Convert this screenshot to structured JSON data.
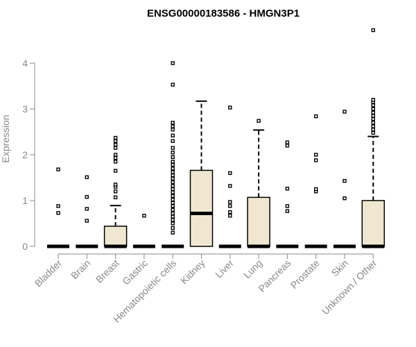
{
  "chart_data": {
    "type": "boxplot",
    "title": "ENSG00000183586 - HMGN3P1",
    "ylabel": "Expression",
    "xlabel": "",
    "ylim": [
      0,
      4.8
    ],
    "yticks": [
      0,
      1,
      2,
      3,
      4
    ],
    "grid": false,
    "box_fill": "#efe7cf",
    "categories": [
      "Bladder",
      "Brain",
      "Breast",
      "Gastric",
      "Hematopoietic cells",
      "Kidney",
      "Liver",
      "Lung",
      "Pancreas",
      "Prostate",
      "Skin",
      "Unknown / Other"
    ],
    "boxes": [
      {
        "category": "Bladder",
        "q1": 0,
        "median": 0,
        "q3": 0,
        "whisker_low": 0,
        "whisker_high": 0,
        "outliers": [
          0.73,
          0.88,
          1.68
        ]
      },
      {
        "category": "Brain",
        "q1": 0,
        "median": 0,
        "q3": 0,
        "whisker_low": 0,
        "whisker_high": 0,
        "outliers": [
          0.56,
          0.82,
          1.08,
          1.51
        ]
      },
      {
        "category": "Breast",
        "q1": 0,
        "median": 0,
        "q3": 0.44,
        "whisker_low": 0,
        "whisker_high": 0.89,
        "outliers": [
          1.07,
          1.2,
          1.3,
          1.35,
          1.65,
          1.85,
          1.93,
          2.0,
          2.15,
          2.22,
          2.3,
          2.37
        ]
      },
      {
        "category": "Gastric",
        "q1": 0,
        "median": 0,
        "q3": 0,
        "whisker_low": 0,
        "whisker_high": 0,
        "outliers": [
          0.67
        ]
      },
      {
        "category": "Hematopoietic cells",
        "q1": 0,
        "median": 0,
        "q3": 0,
        "whisker_low": 0,
        "whisker_high": 0,
        "outliers": [
          0.3,
          0.4,
          0.5,
          0.58,
          0.65,
          0.72,
          0.8,
          0.88,
          0.95,
          1.02,
          1.1,
          1.18,
          1.25,
          1.32,
          1.4,
          1.48,
          1.55,
          1.62,
          1.7,
          1.78,
          1.85,
          1.95,
          2.05,
          2.15,
          2.3,
          2.42,
          2.55,
          2.62,
          2.7,
          3.53,
          4.0
        ]
      },
      {
        "category": "Kidney",
        "q1": 0,
        "median": 0.72,
        "q3": 1.66,
        "whisker_low": 0,
        "whisker_high": 3.17,
        "outliers": []
      },
      {
        "category": "Liver",
        "q1": 0,
        "median": 0,
        "q3": 0,
        "whisker_low": 0,
        "whisker_high": 0,
        "outliers": [
          0.67,
          0.75,
          0.88,
          0.97,
          1.32,
          1.6,
          3.03
        ]
      },
      {
        "category": "Lung",
        "q1": 0,
        "median": 0,
        "q3": 1.07,
        "whisker_low": 0,
        "whisker_high": 2.54,
        "outliers": [
          2.74
        ]
      },
      {
        "category": "Pancreas",
        "q1": 0,
        "median": 0,
        "q3": 0,
        "whisker_low": 0,
        "whisker_high": 0,
        "outliers": [
          0.77,
          0.88,
          1.26,
          2.2,
          2.27
        ]
      },
      {
        "category": "Prostate",
        "q1": 0,
        "median": 0,
        "q3": 0,
        "whisker_low": 0,
        "whisker_high": 0,
        "outliers": [
          1.2,
          1.25,
          1.88,
          2.0,
          2.84
        ]
      },
      {
        "category": "Skin",
        "q1": 0,
        "median": 0,
        "q3": 0,
        "whisker_low": 0,
        "whisker_high": 0,
        "outliers": [
          1.05,
          1.43,
          2.94
        ]
      },
      {
        "category": "Unknown / Other",
        "q1": 0,
        "median": 0,
        "q3": 1.0,
        "whisker_low": 0,
        "whisker_high": 2.4,
        "outliers": [
          2.48,
          2.55,
          2.62,
          2.7,
          2.78,
          2.85,
          2.92,
          3.0,
          3.08,
          3.15,
          3.2,
          4.72
        ]
      }
    ]
  }
}
